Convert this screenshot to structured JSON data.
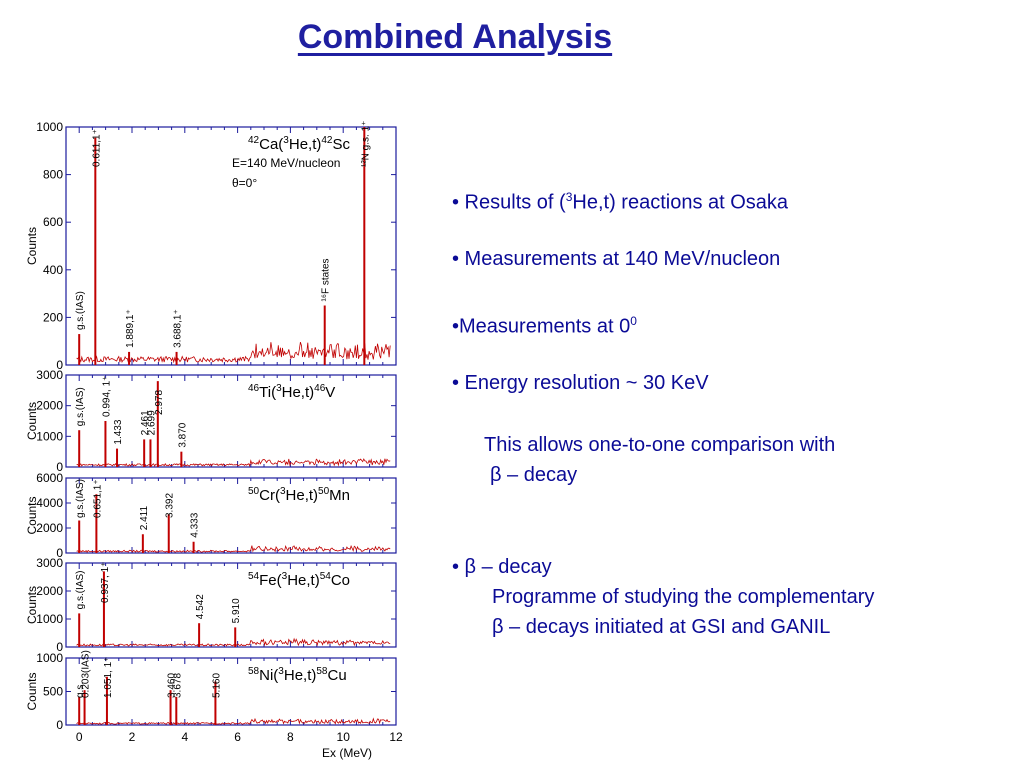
{
  "slide": {
    "title": "Combined Analysis"
  },
  "bullets": {
    "b1_pre": "• Results of (",
    "b1_sup": "3",
    "b1_post": "He,t) reactions at Osaka",
    "b2": "• Measurements at 140 MeV/nucleon",
    "b3_pre": "•Measurements at 0",
    "b3_sup": "0",
    "b4": "• Energy resolution ~ 30 KeV",
    "b5_line1": "This allows one-to-one comparison with",
    "b5_line2": "β – decay",
    "b6": "• β – decay",
    "b6_line1": "Programme of studying the complementary",
    "b6_line2": "β – decays initiated at GSI and GANIL"
  },
  "colors": {
    "spectrum": "#c00000",
    "axis": "#1c1c9c",
    "text": "#0b0b96",
    "title": "#1f1fa0"
  },
  "chart_data": [
    {
      "type": "line",
      "reaction": "42Ca(3He,t)42Sc",
      "extra_labels": [
        "E=140 MeV/nucleon",
        "θ=0°"
      ],
      "ylabel": "Counts",
      "ylim": [
        0,
        1000
      ],
      "yticks": [
        0,
        200,
        400,
        600,
        800,
        1000
      ],
      "xlim": [
        -0.5,
        12
      ],
      "peaks": [
        {
          "x": 0.0,
          "y": 130,
          "label": "g.s.(IAS)"
        },
        {
          "x": 0.611,
          "y": 955,
          "label": "0.611,1⁺"
        },
        {
          "x": 1.889,
          "y": 55,
          "label": "1.889,1⁺"
        },
        {
          "x": 3.688,
          "y": 55,
          "label": "3.688,1⁺"
        },
        {
          "x": 9.3,
          "y": 250,
          "label": "¹⁶F states"
        },
        {
          "x": 10.8,
          "y": 1000,
          "label": "¹²N g.s. 1⁺"
        }
      ]
    },
    {
      "type": "line",
      "reaction": "46Ti(3He,t)46V",
      "ylabel": "Counts",
      "ylim": [
        0,
        3000
      ],
      "yticks": [
        0,
        1000,
        2000,
        3000
      ],
      "xlim": [
        -0.5,
        12
      ],
      "peaks": [
        {
          "x": 0.0,
          "y": 1200,
          "label": "g.s.(IAS)"
        },
        {
          "x": 0.994,
          "y": 1500,
          "label": "0.994, 1⁺"
        },
        {
          "x": 1.433,
          "y": 600,
          "label": "1.433"
        },
        {
          "x": 2.461,
          "y": 900,
          "label": "2.461"
        },
        {
          "x": 2.699,
          "y": 900,
          "label": "2.699"
        },
        {
          "x": 2.978,
          "y": 2800,
          "label": "2.978"
        },
        {
          "x": 3.87,
          "y": 500,
          "label": "3.870"
        }
      ]
    },
    {
      "type": "line",
      "reaction": "50Cr(3He,t)50Mn",
      "ylabel": "Counts",
      "ylim": [
        0,
        6000
      ],
      "yticks": [
        0,
        2000,
        4000,
        6000
      ],
      "xlim": [
        -0.5,
        12
      ],
      "peaks": [
        {
          "x": 0.0,
          "y": 2600,
          "label": "g.s.(IAS)"
        },
        {
          "x": 0.651,
          "y": 4700,
          "label": "0.651,1⁺"
        },
        {
          "x": 2.411,
          "y": 1500,
          "label": "2.411"
        },
        {
          "x": 3.392,
          "y": 3100,
          "label": "3.392"
        },
        {
          "x": 4.333,
          "y": 900,
          "label": "4.333"
        }
      ]
    },
    {
      "type": "line",
      "reaction": "54Fe(3He,t)54Co",
      "ylabel": "Counts",
      "ylim": [
        0,
        3000
      ],
      "yticks": [
        0,
        1000,
        2000,
        3000
      ],
      "xlim": [
        -0.5,
        12
      ],
      "peaks": [
        {
          "x": 0.0,
          "y": 1200,
          "label": "g.s.(IAS)"
        },
        {
          "x": 0.937,
          "y": 2700,
          "label": "0.937, 1⁺"
        },
        {
          "x": 4.542,
          "y": 850,
          "label": "4.542"
        },
        {
          "x": 5.91,
          "y": 700,
          "label": "5.910"
        }
      ]
    },
    {
      "type": "line",
      "reaction": "58Ni(3He,t)58Cu",
      "ylabel": "Counts",
      "ylim": [
        0,
        1000
      ],
      "yticks": [
        0,
        500,
        1000
      ],
      "xlim": [
        -0.5,
        12
      ],
      "xticks": [
        0,
        2,
        4,
        6,
        8,
        10,
        12
      ],
      "xlabel": "Ex (MeV)",
      "peaks": [
        {
          "x": 0.0,
          "y": 420,
          "label": "g.s."
        },
        {
          "x": 0.203,
          "y": 520,
          "label": "0.203(IAS)"
        },
        {
          "x": 1.051,
          "y": 720,
          "label": "1.051, 1⁺"
        },
        {
          "x": 3.46,
          "y": 520,
          "label": "3.460"
        },
        {
          "x": 3.678,
          "y": 420,
          "label": "3.678"
        },
        {
          "x": 5.16,
          "y": 650,
          "label": "5.160"
        }
      ]
    }
  ]
}
